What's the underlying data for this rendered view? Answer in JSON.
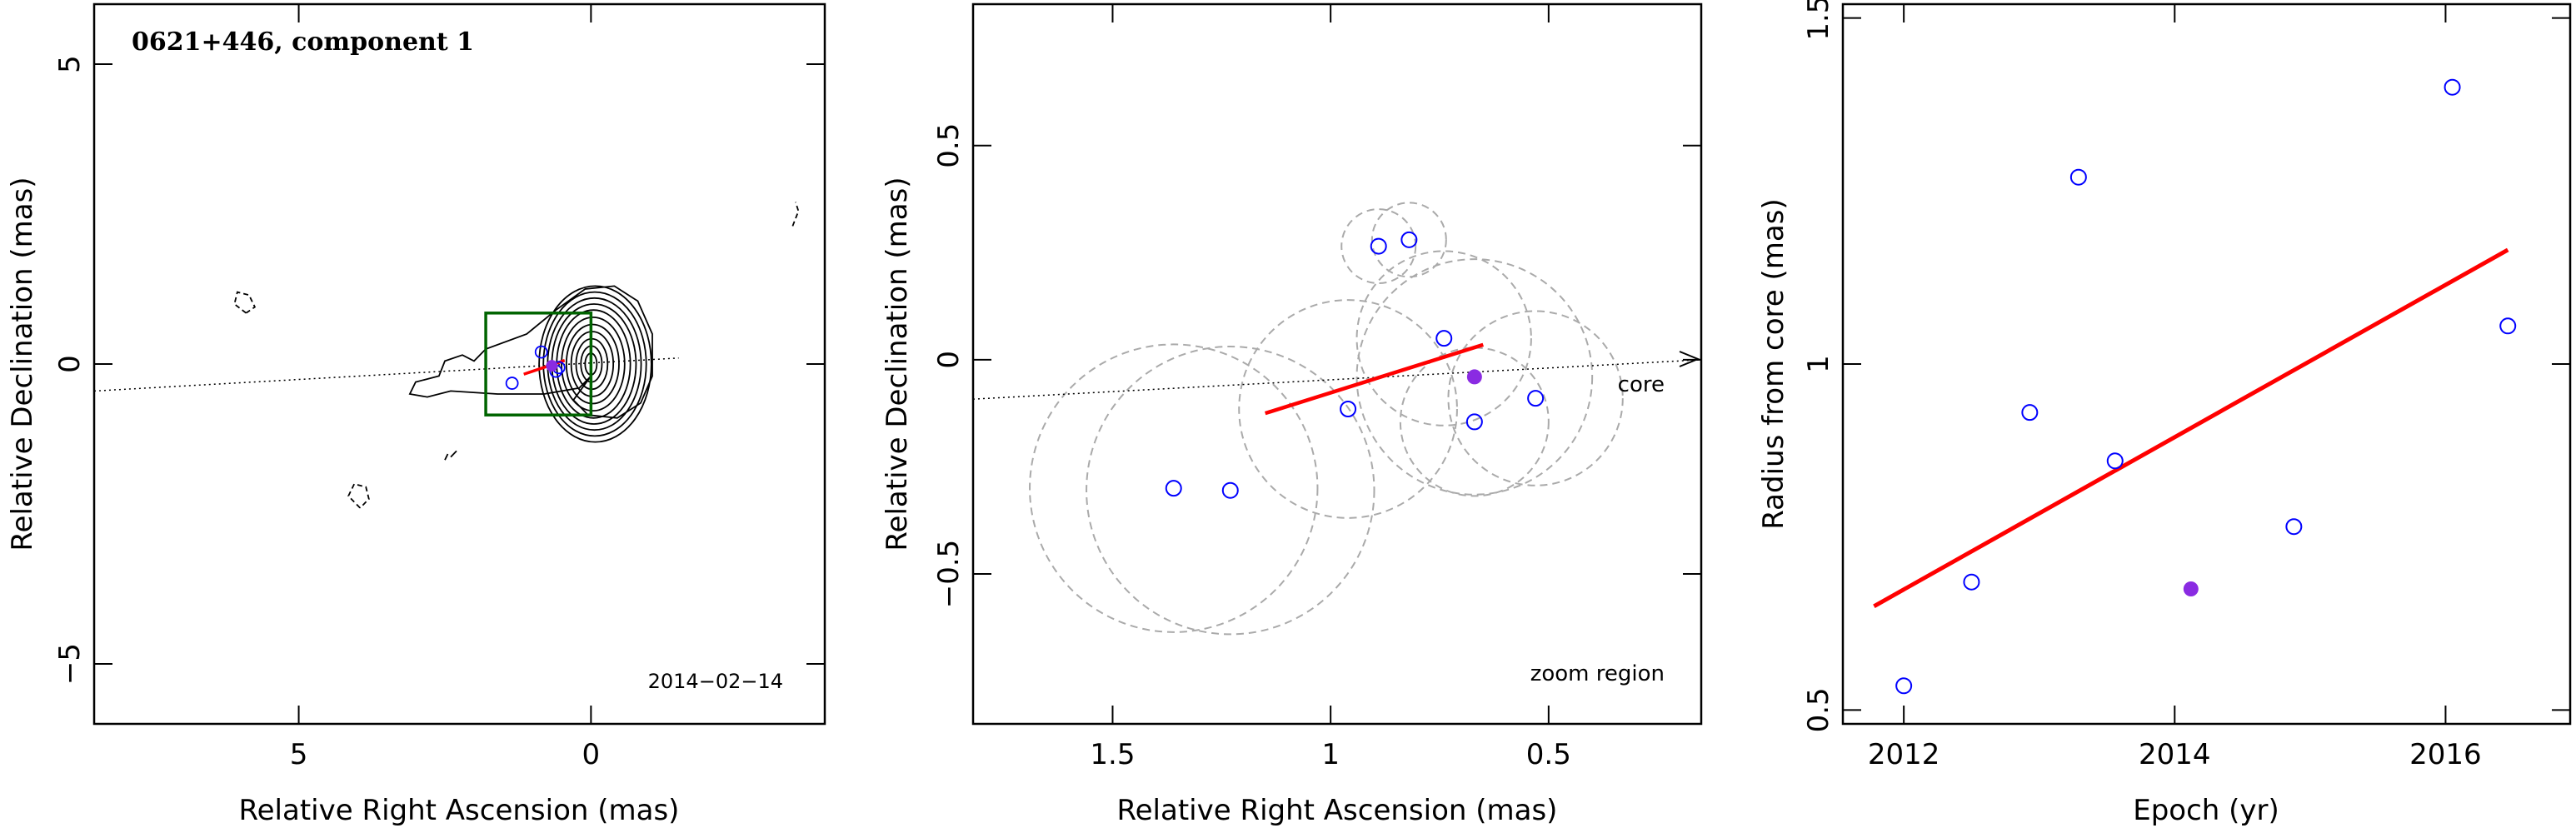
{
  "colors": {
    "axis": "#000000",
    "contour": "#000000",
    "epoch_marker": "#0000ff",
    "current_epoch_marker": "#8a2be2",
    "fit_line": "#ff0000",
    "box": "#006400",
    "circle": "#aaaaaa"
  },
  "chart_data": [
    {
      "panel": "map",
      "type": "contour",
      "title": "0621+446, component 1",
      "date_label": "2014−02−14",
      "xlabel": "Relative Right Ascension (mas)",
      "ylabel": "Relative Declination (mas)",
      "xlim": [
        8.5,
        -4
      ],
      "ylim": [
        -6,
        6
      ],
      "x_ticks": [
        "5",
        "0"
      ],
      "y_ticks": [
        "5",
        "0",
        "−5"
      ],
      "x_tick_values": [
        5,
        0
      ],
      "y_tick_values": [
        5,
        0,
        -5
      ],
      "core_direction": [
        [
          8.5,
          -0.45
        ],
        [
          -1.5,
          0.1
        ]
      ],
      "zoom_box": {
        "x": [
          1.8,
          0.0
        ],
        "y": [
          -0.85,
          0.85
        ]
      },
      "contours": [
        {
          "points": [
            [
              0,
              -0.2
            ],
            [
              0.2,
              -0.4
            ],
            [
              0.8,
              -0.5
            ],
            [
              1.6,
              -0.5
            ],
            [
              2.4,
              -0.45
            ],
            [
              2.8,
              -0.55
            ],
            [
              3.1,
              -0.5
            ],
            [
              3.0,
              -0.3
            ],
            [
              2.6,
              -0.2
            ],
            [
              2.5,
              0.05
            ],
            [
              2.2,
              0.15
            ],
            [
              2.0,
              0.05
            ],
            [
              1.8,
              0.25
            ],
            [
              1.1,
              0.5
            ],
            [
              0.6,
              0.9
            ],
            [
              0.1,
              1.25
            ],
            [
              -0.4,
              1.3
            ],
            [
              -0.8,
              1.05
            ],
            [
              -1.05,
              0.5
            ],
            [
              -1.05,
              -0.2
            ],
            [
              -0.85,
              -0.65
            ],
            [
              -0.45,
              -0.9
            ],
            [
              0.05,
              -0.85
            ],
            [
              0.3,
              -0.6
            ],
            [
              0,
              -0.2
            ]
          ],
          "dashed": false
        },
        {
          "points": [
            [
              2.3,
              -1.45
            ],
            [
              2.4,
              -1.55
            ]
          ],
          "dashed": false
        },
        {
          "points": [
            [
              2.45,
              -1.5
            ],
            [
              2.5,
              -1.6
            ]
          ],
          "dashed": false
        },
        {
          "points": [
            [
              5.9,
              0.85
            ],
            [
              6.1,
              1.0
            ],
            [
              6.05,
              1.2
            ],
            [
              5.85,
              1.15
            ],
            [
              5.75,
              0.95
            ],
            [
              5.9,
              0.85
            ]
          ],
          "dashed": true
        },
        {
          "points": [
            [
              3.95,
              -2.4
            ],
            [
              4.15,
              -2.2
            ],
            [
              4.05,
              -2.0
            ],
            [
              3.85,
              -2.05
            ],
            [
              3.8,
              -2.25
            ],
            [
              3.95,
              -2.4
            ]
          ],
          "dashed": true
        },
        {
          "points": [
            [
              -3.45,
              2.3
            ],
            [
              -3.55,
              2.55
            ],
            [
              -3.5,
              2.7
            ]
          ],
          "dashed": true
        }
      ],
      "core_contours": {
        "center": [
          0,
          0
        ],
        "rx": [
          0.1,
          0.18,
          0.27,
          0.36,
          0.45,
          0.54,
          0.63,
          0.72,
          0.8,
          0.88,
          0.96
        ],
        "ry": [
          0.18,
          0.3,
          0.42,
          0.54,
          0.66,
          0.78,
          0.9,
          1.0,
          1.1,
          1.2,
          1.3
        ]
      },
      "epochs": {
        "x": [
          1.35,
          0.85,
          0.6,
          0.55
        ],
        "y": [
          -0.32,
          0.2,
          -0.12,
          -0.06
        ]
      },
      "current": {
        "x": 0.67,
        "y": -0.03
      },
      "fit_line": [
        [
          1.15,
          -0.17
        ],
        [
          0.45,
          0.06
        ]
      ]
    },
    {
      "panel": "zoom",
      "type": "scatter",
      "annotations": [
        "core",
        "zoom region"
      ],
      "xlabel": "Relative Right Ascension (mas)",
      "ylabel": "Relative Declination (mas)",
      "xlim": [
        1.82,
        0.15
      ],
      "ylim": [
        -0.85,
        0.83
      ],
      "x_ticks": [
        "1.5",
        "1",
        "0.5"
      ],
      "y_ticks": [
        "0.5",
        "0",
        "−0.5"
      ],
      "x_tick_values": [
        1.5,
        1,
        0.5
      ],
      "y_tick_values": [
        0.5,
        0,
        -0.5
      ],
      "core_direction": [
        [
          1.82,
          -0.092
        ],
        [
          0.15,
          0.0
        ]
      ],
      "epochs": {
        "x": [
          1.36,
          1.23,
          0.96,
          0.89,
          0.82,
          0.74,
          0.53,
          0.67
        ],
        "y": [
          -0.3,
          -0.305,
          -0.115,
          0.265,
          0.28,
          0.05,
          -0.09,
          -0.145
        ]
      },
      "circle_radii": [
        0.33,
        0.33,
        0.25,
        0.085,
        0.085,
        0.2,
        0.2,
        0.17
      ],
      "current": {
        "x": 0.67,
        "y": -0.04
      },
      "current_radius": 0.27,
      "fit_line": [
        [
          1.15,
          -0.125
        ],
        [
          0.65,
          0.035
        ]
      ]
    },
    {
      "panel": "radius",
      "type": "scatter",
      "xlabel": "Epoch (yr)",
      "ylabel": "Radius from core (mas)",
      "xlim": [
        2011.55,
        2016.92
      ],
      "ylim": [
        0.48,
        1.52
      ],
      "x_ticks": [
        "2012",
        "2014",
        "2016"
      ],
      "y_ticks": [
        "1.5",
        "1",
        "0.5"
      ],
      "x_tick_values": [
        2012,
        2014,
        2016
      ],
      "y_tick_values": [
        1.5,
        1,
        0.5
      ],
      "x": [
        2012.0,
        2012.5,
        2012.93,
        2013.29,
        2013.56,
        2014.88,
        2016.05,
        2016.46
      ],
      "y": [
        0.535,
        0.685,
        0.93,
        1.27,
        0.86,
        0.765,
        1.4,
        1.055
      ],
      "current": {
        "x": 2014.12,
        "y": 0.675
      },
      "fit_line": [
        [
          2011.78,
          0.65
        ],
        [
          2016.46,
          1.165
        ]
      ]
    }
  ]
}
